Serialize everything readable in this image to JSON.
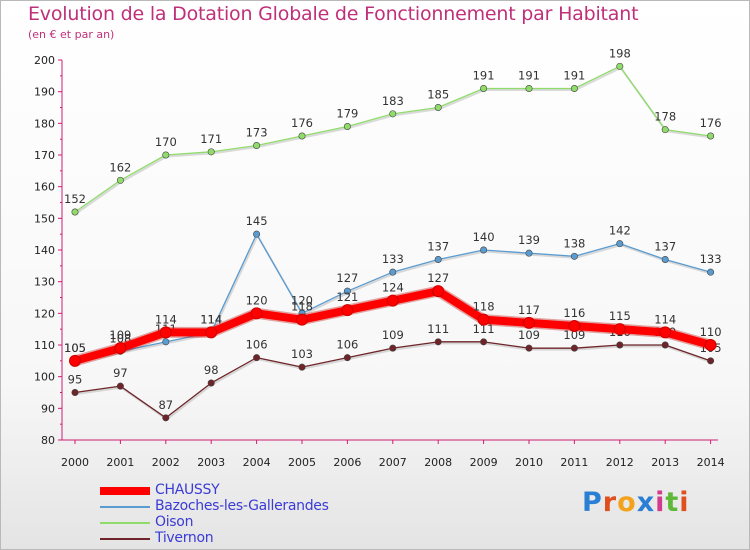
{
  "title": "Evolution de la Dotation Globale de Fonctionnement par Habitant",
  "subtitle": "(en € et par an)",
  "brand": {
    "text": "Proxiti",
    "letter_colors": [
      "#2a7fd4",
      "#e0501e",
      "#f3a31b",
      "#2a7fd4",
      "#d23b8e",
      "#5fb83a",
      "#e0501e"
    ]
  },
  "chart_data": {
    "type": "line",
    "title": "Evolution de la Dotation Globale de Fonctionnement par Habitant",
    "subtitle": "(en € et par an)",
    "xlabel": "",
    "ylabel": "",
    "ylim": [
      80,
      200
    ],
    "yticks": [
      80,
      90,
      100,
      110,
      120,
      130,
      140,
      150,
      160,
      170,
      180,
      190,
      200
    ],
    "grid": false,
    "x": [
      "2000",
      "2001",
      "2002",
      "2003",
      "2004",
      "2005",
      "2006",
      "2007",
      "2008",
      "2009",
      "2010",
      "2011",
      "2012",
      "2013",
      "2014"
    ],
    "series": [
      {
        "name": "Tivernon",
        "color": "#6e2428",
        "values": [
          95,
          97,
          87,
          98,
          106,
          103,
          106,
          109,
          111,
          111,
          109,
          109,
          110,
          110,
          105
        ]
      },
      {
        "name": "Oison",
        "color": "#8fdc6a",
        "values": [
          152,
          162,
          170,
          171,
          173,
          176,
          179,
          183,
          185,
          191,
          191,
          191,
          198,
          178,
          176
        ]
      },
      {
        "name": "Bazoches-les-Gallerandes",
        "color": "#5a9bd0",
        "values": [
          105,
          108,
          111,
          114,
          145,
          120,
          127,
          133,
          137,
          140,
          139,
          138,
          142,
          137,
          133
        ]
      },
      {
        "name": "CHAUSSY",
        "color": "#ff0000",
        "values": [
          105,
          109,
          114,
          114,
          120,
          118,
          121,
          124,
          127,
          118,
          117,
          116,
          115,
          114,
          110
        ]
      }
    ],
    "legend": [
      "CHAUSSY",
      "Bazoches-les-Gallerandes",
      "Oison",
      "Tivernon"
    ],
    "legend_position": "bottom-left"
  }
}
